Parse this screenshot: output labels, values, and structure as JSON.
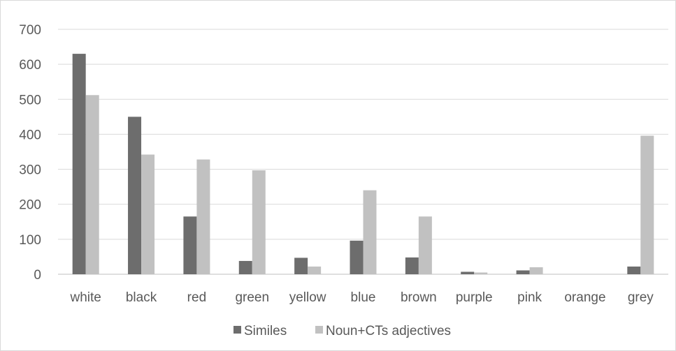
{
  "chart_data": {
    "type": "bar",
    "categories": [
      "white",
      "black",
      "red",
      "green",
      "yellow",
      "blue",
      "brown",
      "purple",
      "pink",
      "orange",
      "grey"
    ],
    "series": [
      {
        "name": "Similes",
        "color": "#6d6d6d",
        "values": [
          630,
          450,
          165,
          38,
          47,
          96,
          48,
          7,
          11,
          0,
          22
        ]
      },
      {
        "name": "Noun+CTs adjectives",
        "color": "#c1c1c1",
        "values": [
          512,
          342,
          328,
          297,
          22,
          240,
          165,
          5,
          20,
          0,
          396
        ]
      }
    ],
    "yticks": [
      0,
      100,
      200,
      300,
      400,
      500,
      600,
      700
    ],
    "ylim": [
      0,
      700
    ],
    "grid": true,
    "legend_position": "bottom",
    "title": "",
    "xlabel": "",
    "ylabel": ""
  }
}
